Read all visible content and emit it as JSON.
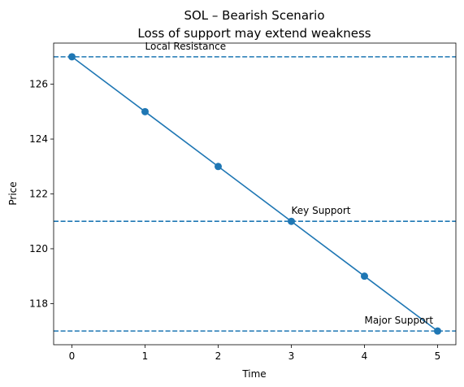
{
  "chart_data": {
    "type": "line",
    "title": "SOL – Bearish Scenario",
    "subtitle": "Loss of support may extend weakness",
    "xlabel": "Time",
    "ylabel": "Price",
    "x": [
      0,
      1,
      2,
      3,
      4,
      5
    ],
    "series": [
      {
        "values": [
          127,
          125,
          123,
          121,
          119,
          117
        ],
        "color": "#1f77b4",
        "marker": "circle"
      }
    ],
    "x_ticks": [
      0,
      1,
      2,
      3,
      4,
      5
    ],
    "y_ticks": [
      118,
      120,
      122,
      124,
      126
    ],
    "xlim": [
      -0.25,
      5.25
    ],
    "ylim": [
      116.5,
      127.5
    ],
    "grid": false,
    "hlines": [
      {
        "y": 127,
        "label": "Local Resistance",
        "label_x": 1,
        "style": "dashed",
        "color": "#1f77b4"
      },
      {
        "y": 121,
        "label": "Key Support",
        "label_x": 3,
        "style": "dashed",
        "color": "#1f77b4"
      },
      {
        "y": 117,
        "label": "Major Support",
        "label_x": 4,
        "style": "dashed",
        "color": "#1f77b4"
      }
    ]
  }
}
